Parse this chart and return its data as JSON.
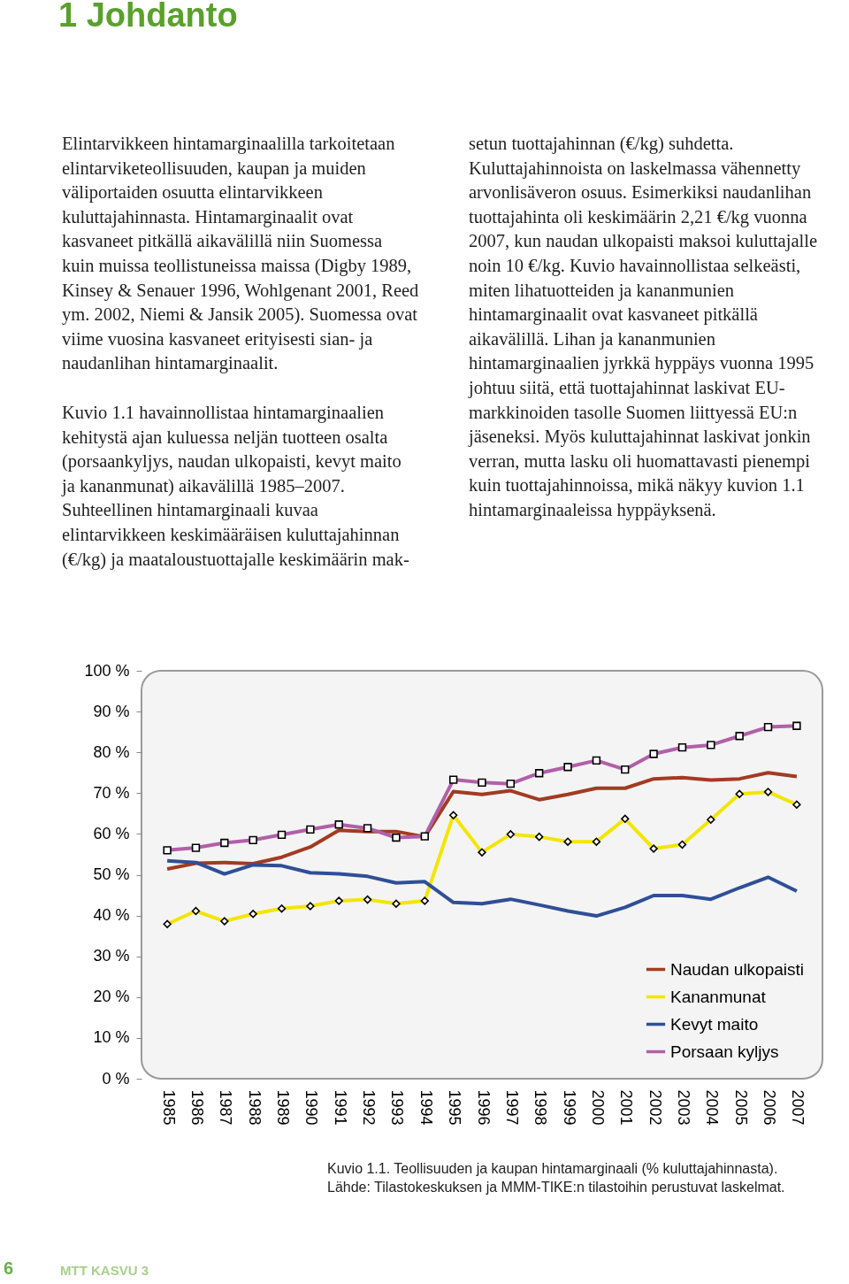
{
  "chart_data": {
    "type": "line",
    "title": "1 Johdanto",
    "categories": [
      "1985",
      "1986",
      "1987",
      "1988",
      "1989",
      "1990",
      "1991",
      "1992",
      "1993",
      "1994",
      "1995",
      "1996",
      "1997",
      "1998",
      "1999",
      "2000",
      "2001",
      "2002",
      "2003",
      "2004",
      "2005",
      "2006",
      "2007"
    ],
    "series": [
      {
        "name": "Naudan ulkopaisti",
        "color": "#a23b22",
        "marker": "none",
        "values": [
          51.4,
          52.8,
          53.0,
          52.7,
          54.3,
          56.8,
          60.9,
          60.6,
          60.6,
          59.3,
          70.4,
          69.7,
          70.6,
          68.4,
          69.7,
          71.2,
          71.2,
          73.5,
          73.8,
          73.2,
          73.5,
          75.0,
          74.1
        ]
      },
      {
        "name": "Kananmunat",
        "color": "#f2e600",
        "marker": "diamond",
        "values": [
          37.9,
          41.1,
          38.6,
          40.4,
          41.7,
          42.3,
          43.6,
          43.9,
          42.9,
          43.6,
          64.6,
          55.5,
          59.9,
          59.3,
          58.1,
          58.1,
          63.7,
          56.4,
          57.4,
          63.5,
          69.8,
          70.3,
          67.2
        ]
      },
      {
        "name": "Kevyt maito",
        "color": "#2f4f96",
        "marker": "none",
        "values": [
          53.4,
          53.0,
          50.2,
          52.4,
          52.2,
          50.5,
          50.2,
          49.6,
          48.0,
          48.3,
          43.2,
          42.9,
          44.0,
          42.6,
          41.1,
          39.9,
          42.0,
          44.9,
          44.9,
          44.0,
          46.8,
          49.4,
          46.0
        ]
      },
      {
        "name": "Porsaan kyljys",
        "color": "#b060a8",
        "marker": "square",
        "values": [
          56.0,
          56.6,
          57.8,
          58.5,
          59.8,
          61.1,
          62.3,
          61.4,
          59.1,
          59.4,
          73.3,
          72.6,
          72.3,
          74.9,
          76.4,
          78.0,
          75.8,
          79.6,
          81.2,
          81.8,
          84.0,
          86.2,
          86.5
        ]
      }
    ],
    "ylim": [
      0,
      100
    ],
    "yticks": [
      {
        "value": 0,
        "label": "0 %"
      },
      {
        "value": 10,
        "label": "10 %"
      },
      {
        "value": 20,
        "label": "20 %"
      },
      {
        "value": 30,
        "label": "30 %"
      },
      {
        "value": 40,
        "label": "40 %"
      },
      {
        "value": 50,
        "label": "50 %"
      },
      {
        "value": 60,
        "label": "60 %"
      },
      {
        "value": 70,
        "label": "70 %"
      },
      {
        "value": 80,
        "label": "80 %"
      },
      {
        "value": 90,
        "label": "90 %"
      },
      {
        "value": 100,
        "label": "100 %"
      }
    ],
    "grid": false,
    "legend": "bottom right",
    "annotations": [
      "Elintarvikkeen hintamarginaalilla tarkoitetaan elintarviketeollisuuden, kaupan ja muiden väliportaiden osuutta elintarvikkeen kuluttajahinnasta. Hintamarginaalit ovat kasvaneet pitkällä aikavälillä niin Suomessa kuin muissa teollistuneissa maissa (Digby 1989, Kinsey & Senauer 1996, Wohlgenant 2001, Reed ym. 2002, Niemi & Jansik 2005). Suomessa ovat viime vuosina kasvaneet erityisesti sian- ja naudanlihan hintamarginaalit.",
      "Kuvio 1.1 havainnollistaa hintamarginaalien kehitystä ajan kuluessa neljän tuotteen osalta (porsaankyljys, naudan ulkopaisti, kevyt maito ja kananmunat) aikavälillä 1985–2007. Suhteellinen hintamarginaali kuvaa elintarvikkeen keskimääräisen kuluttajahinnan (€/kg) ja maataloustuottajalle keskimäärin mak-",
      "setun tuottajahinnan (€/kg) suhdetta. Kuluttajahinnoista on laskelmassa vähennetty arvonlisäveron osuus. Esimerkiksi naudanlihan tuottajahinta oli keskimäärin 2,21 €/kg vuonna 2007, kun naudan ulkopaisti maksoi kuluttajalle noin 10 €/kg. Kuvio havainnollistaa selkeästi, miten lihatuotteiden ja kananmunien hintamarginaalit ovat kasvaneet pitkällä aikavälillä. Lihan ja kananmunien hintamarginaalien jyrkkä hyppäys vuonna 1995 johtuu siitä, että tuottajahinnat laskivat EU-markkinoiden tasolle Suomen liittyessä EU:n jäseneksi. Myös kuluttajahinnat laskivat jonkin verran, mutta lasku oli huomattavasti pienempi kuin tuottajahinnoissa, mikä näkyy kuvion 1.1 hintamarginaaleissa hyppäyksenä.",
      "Kuvio 1.1. Teollisuuden ja kaupan hintamarginaali (% kuluttajahinnasta). Lähde: Tilastokeskuksen ja MMM-TIKE:n tilastoihin perustuvat laskelmat.",
      "6",
      "MTT KASVU 3"
    ]
  }
}
